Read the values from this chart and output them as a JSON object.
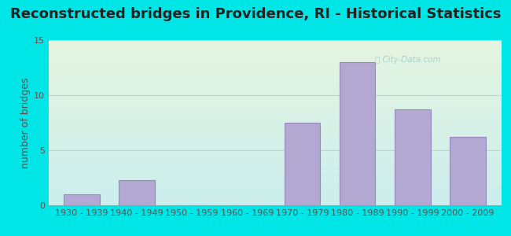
{
  "title": "Reconstructed bridges in Providence, RI - Historical Statistics",
  "ylabel": "number of bridges",
  "categories": [
    "1930 - 1939",
    "1940 - 1949",
    "1950 - 1959",
    "1960 - 1969",
    "1970 - 1979",
    "1980 - 1989",
    "1990 - 1999",
    "2000 - 2009"
  ],
  "values": [
    1,
    2.3,
    0,
    0,
    7.5,
    13,
    8.7,
    6.2
  ],
  "bar_color": "#b3a8d1",
  "bar_edge_color": "#9988bb",
  "ylim": [
    0,
    15
  ],
  "yticks": [
    0,
    5,
    10,
    15
  ],
  "bg_color": "#00e5e5",
  "plot_bg_top": "#e5f5e0",
  "plot_bg_bottom": "#cceeee",
  "title_fontsize": 13,
  "ylabel_fontsize": 9,
  "tick_fontsize": 8,
  "grid_color": "#cccccc",
  "watermark": "City-Data.com",
  "title_color": "#222222",
  "label_color": "#555555"
}
